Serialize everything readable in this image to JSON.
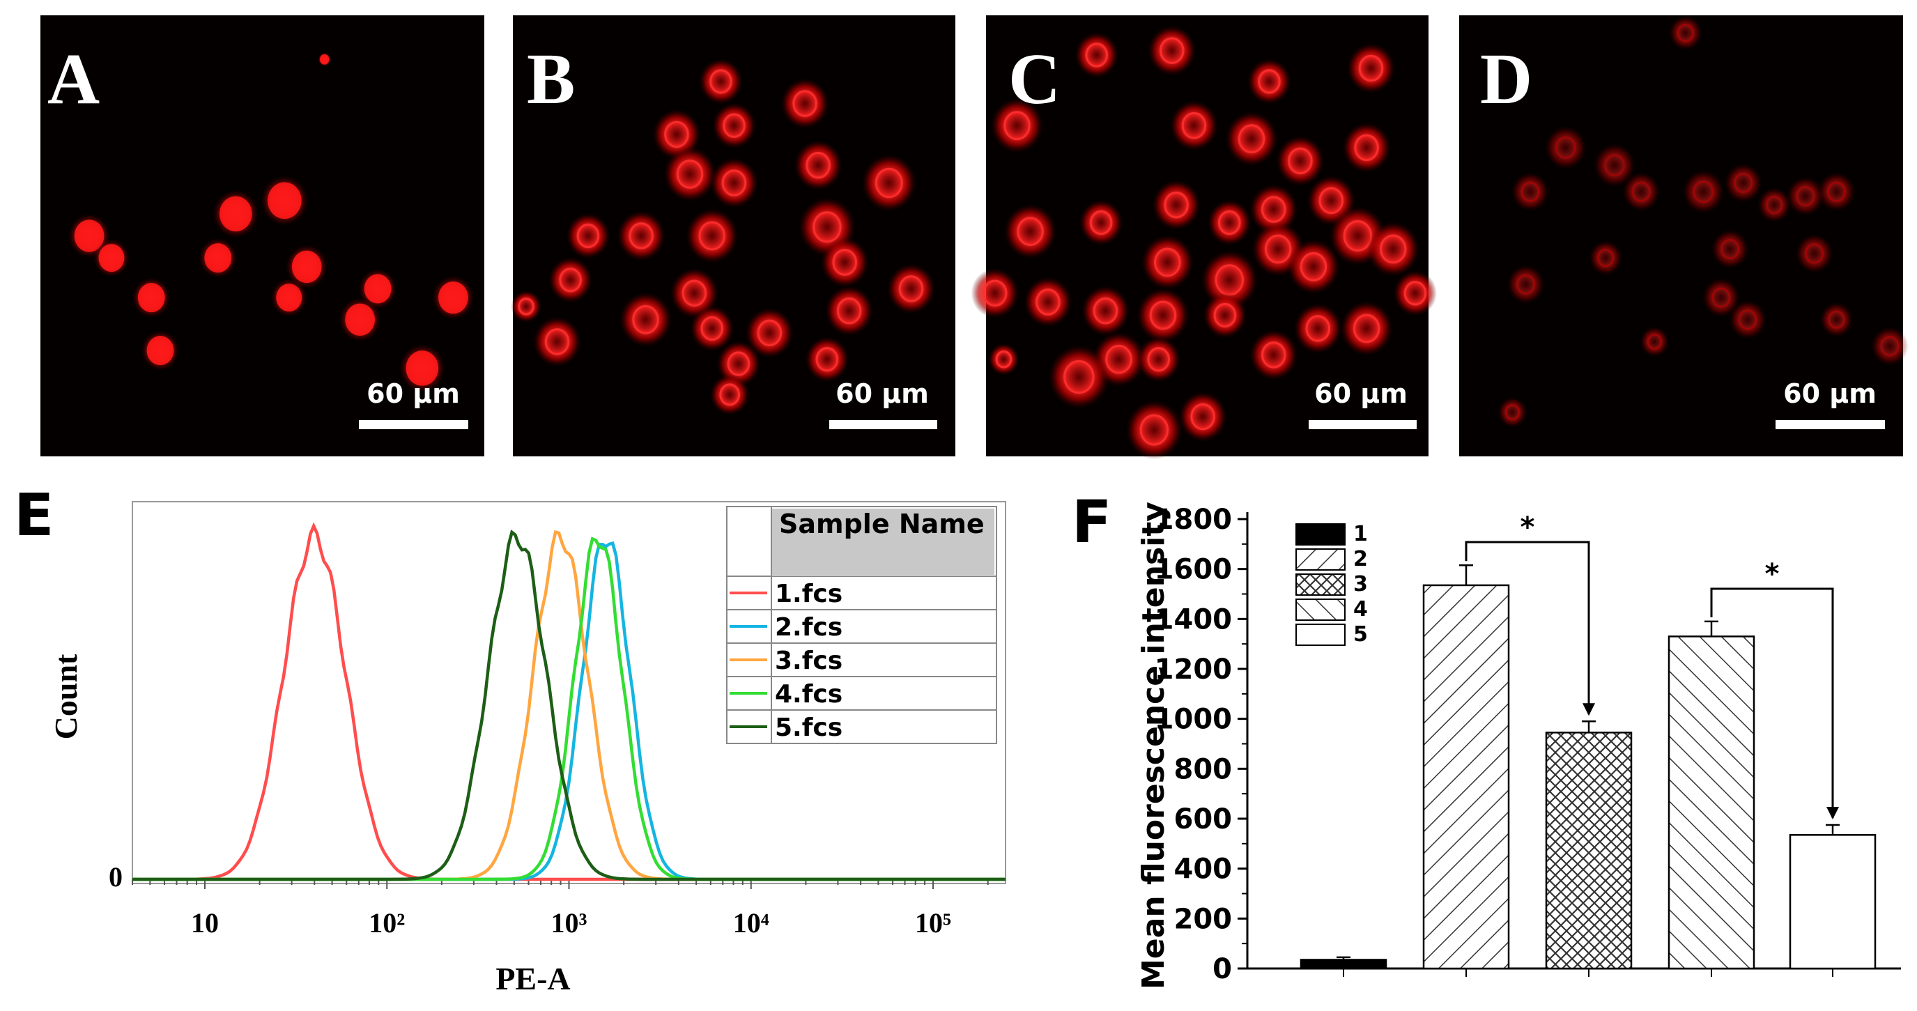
{
  "figure": {
    "panels": [
      {
        "label": "A",
        "scale_bar": "60 µm"
      },
      {
        "label": "B",
        "scale_bar": "60 µm"
      },
      {
        "label": "C",
        "scale_bar": "60 µm"
      },
      {
        "label": "D",
        "scale_bar": "60 µm"
      }
    ],
    "panel_e_label": "E",
    "panel_f_label": "F",
    "colors": {
      "cell_red": "#ff1a1a",
      "fcs1": "#ff4d4d",
      "fcs2": "#14b5e0",
      "fcs3": "#ffa640",
      "fcs4": "#33dd33",
      "fcs5": "#1d5e16"
    }
  },
  "chart_data": [
    {
      "type": "line",
      "panel": "E",
      "title": "",
      "xlabel": "PE-A",
      "ylabel": "Count",
      "xscale": "log",
      "xlim": [
        4,
        250000
      ],
      "ylim": [
        0,
        1.05
      ],
      "x_tick_labels": [
        "10",
        "10²",
        "10³",
        "10⁴",
        "10⁵"
      ],
      "x_tick_values": [
        10,
        100,
        1000,
        10000,
        100000
      ],
      "y_tick_labels": [
        "0"
      ],
      "legend": {
        "header": "Sample Name",
        "placement": "top-right"
      },
      "series": [
        {
          "name": "1.fcs",
          "peak_x": 40,
          "spread": 0.17,
          "color_key": "fcs1"
        },
        {
          "name": "2.fcs",
          "peak_x": 1600,
          "spread": 0.13,
          "color_key": "fcs2"
        },
        {
          "name": "3.fcs",
          "peak_x": 900,
          "spread": 0.15,
          "color_key": "fcs3"
        },
        {
          "name": "4.fcs",
          "peak_x": 1450,
          "spread": 0.13,
          "color_key": "fcs4"
        },
        {
          "name": "5.fcs",
          "peak_x": 520,
          "spread": 0.16,
          "color_key": "fcs5"
        }
      ]
    },
    {
      "type": "bar",
      "panel": "F",
      "title": "",
      "xlabel": "",
      "ylabel": "Mean fluorescence intensity",
      "ylim": [
        0,
        1800
      ],
      "y_ticks": [
        0,
        200,
        400,
        600,
        800,
        1000,
        1200,
        1400,
        1600,
        1800
      ],
      "categories": [
        "1",
        "2",
        "3",
        "4",
        "5"
      ],
      "values": [
        35,
        1535,
        945,
        1330,
        535
      ],
      "errors": [
        10,
        80,
        45,
        60,
        40
      ],
      "patterns": [
        "solid",
        "diag",
        "cross",
        "backdiag",
        "empty"
      ],
      "legend": [
        "1",
        "2",
        "3",
        "4",
        "5"
      ],
      "significance": [
        {
          "from": 1,
          "to": 2,
          "label": "*"
        },
        {
          "from": 3,
          "to": 4,
          "label": "*"
        }
      ]
    }
  ]
}
